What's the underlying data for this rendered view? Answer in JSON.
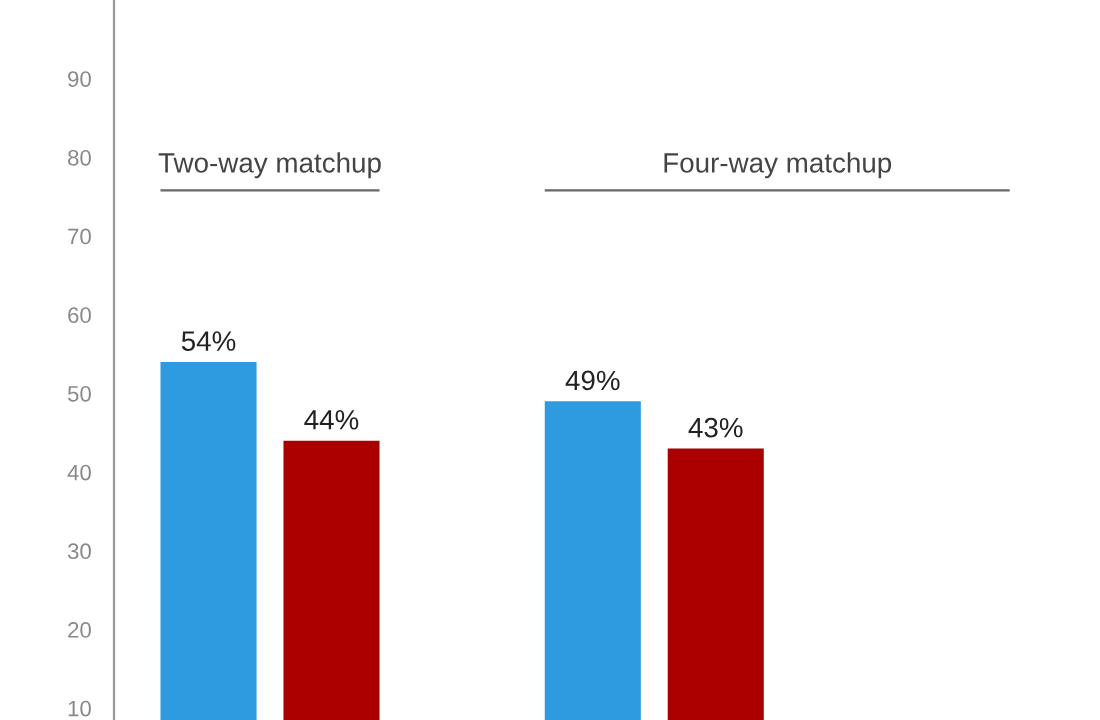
{
  "chart_data": {
    "type": "bar",
    "categories": [
      null,
      null
    ],
    "series": [
      {
        "color": "#2e9be0",
        "values": [
          54,
          49
        ],
        "value_labels": [
          "54%",
          "49%"
        ]
      },
      {
        "color": "#aa0000",
        "values": [
          44,
          43
        ],
        "value_labels": [
          "44%",
          "43%"
        ]
      }
    ],
    "annotations": [
      "Two-way matchup",
      "Four-way matchup"
    ],
    "ylim": [
      8.5,
      100
    ],
    "yticks": [
      10,
      20,
      30,
      40,
      50,
      60,
      70,
      80,
      90
    ]
  }
}
